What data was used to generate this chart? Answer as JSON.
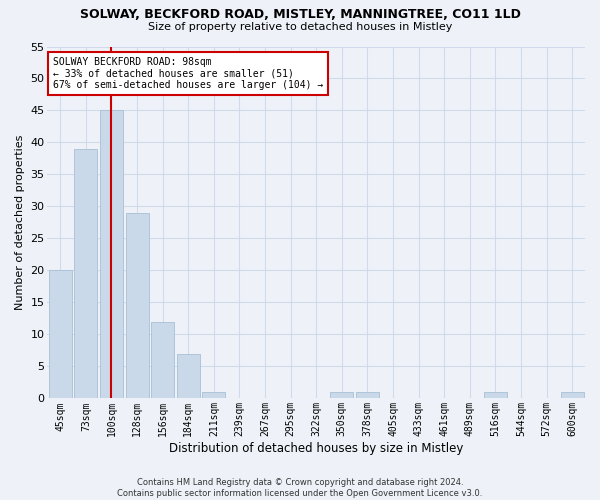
{
  "title1": "SOLWAY, BECKFORD ROAD, MISTLEY, MANNINGTREE, CO11 1LD",
  "title2": "Size of property relative to detached houses in Mistley",
  "xlabel": "Distribution of detached houses by size in Mistley",
  "ylabel": "Number of detached properties",
  "bin_labels": [
    "45sqm",
    "73sqm",
    "100sqm",
    "128sqm",
    "156sqm",
    "184sqm",
    "211sqm",
    "239sqm",
    "267sqm",
    "295sqm",
    "322sqm",
    "350sqm",
    "378sqm",
    "405sqm",
    "433sqm",
    "461sqm",
    "489sqm",
    "516sqm",
    "544sqm",
    "572sqm",
    "600sqm"
  ],
  "bar_heights": [
    20,
    39,
    45,
    29,
    12,
    7,
    1,
    0,
    0,
    0,
    0,
    1,
    1,
    0,
    0,
    0,
    0,
    1,
    0,
    0,
    1
  ],
  "bar_color": "#c9d9ea",
  "bar_edge_color": "#a8bfd4",
  "grid_color": "#d0daea",
  "vline_x": 2,
  "vline_color": "#cc0000",
  "annotation_line1": "SOLWAY BECKFORD ROAD: 98sqm",
  "annotation_line2": "← 33% of detached houses are smaller (51)",
  "annotation_line3": "67% of semi-detached houses are larger (104) →",
  "annotation_box_color": "#cc0000",
  "annotation_box_fill": "#ffffff",
  "ylim": [
    0,
    55
  ],
  "yticks": [
    0,
    5,
    10,
    15,
    20,
    25,
    30,
    35,
    40,
    45,
    50,
    55
  ],
  "footer": "Contains HM Land Registry data © Crown copyright and database right 2024.\nContains public sector information licensed under the Open Government Licence v3.0.",
  "bg_color": "#eef2f8"
}
